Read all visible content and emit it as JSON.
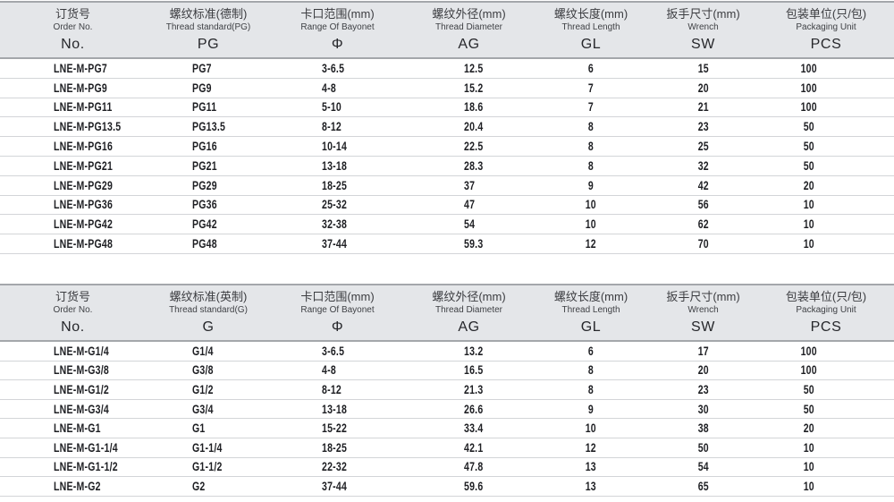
{
  "colors": {
    "header_background": "#e4e6e9",
    "header_border": "#a4a7ab",
    "row_divider": "#d3d5d8",
    "text_primary": "#1e1f23"
  },
  "tables": [
    {
      "id": "pg-metric-table",
      "columns": [
        {
          "zh": "订货号",
          "en": "Order No.",
          "code": "No."
        },
        {
          "zh": "螺纹标准(德制)",
          "en": "Thread standard(PG)",
          "code": "PG"
        },
        {
          "zh": "卡口范围(mm)",
          "en": "Range Of Bayonet",
          "code": "Φ"
        },
        {
          "zh": "螺纹外径(mm)",
          "en": "Thread Diameter",
          "code": "AG"
        },
        {
          "zh": "螺纹长度(mm)",
          "en": "Thread Length",
          "code": "GL"
        },
        {
          "zh": "扳手尺寸(mm)",
          "en": "Wrench",
          "code": "SW"
        },
        {
          "zh": "包装单位(只/包)",
          "en": "Packaging Unit",
          "code": "PCS"
        }
      ],
      "rows": [
        [
          "LNE-M-PG7",
          "PG7",
          "3-6.5",
          "12.5",
          "6",
          "15",
          "100"
        ],
        [
          "LNE-M-PG9",
          "PG9",
          "4-8",
          "15.2",
          "7",
          "20",
          "100"
        ],
        [
          "LNE-M-PG11",
          "PG11",
          "5-10",
          "18.6",
          "7",
          "21",
          "100"
        ],
        [
          "LNE-M-PG13.5",
          "PG13.5",
          "8-12",
          "20.4",
          "8",
          "23",
          "50"
        ],
        [
          "LNE-M-PG16",
          "PG16",
          "10-14",
          "22.5",
          "8",
          "25",
          "50"
        ],
        [
          "LNE-M-PG21",
          "PG21",
          "13-18",
          "28.3",
          "8",
          "32",
          "50"
        ],
        [
          "LNE-M-PG29",
          "PG29",
          "18-25",
          "37",
          "9",
          "42",
          "20"
        ],
        [
          "LNE-M-PG36",
          "PG36",
          "25-32",
          "47",
          "10",
          "56",
          "10"
        ],
        [
          "LNE-M-PG42",
          "PG42",
          "32-38",
          "54",
          "10",
          "62",
          "10"
        ],
        [
          "LNE-M-PG48",
          "PG48",
          "37-44",
          "59.3",
          "12",
          "70",
          "10"
        ]
      ]
    },
    {
      "id": "g-thread-table",
      "columns": [
        {
          "zh": "订货号",
          "en": "Order No.",
          "code": "No."
        },
        {
          "zh": "螺纹标准(英制)",
          "en": "Thread standard(G)",
          "code": "G"
        },
        {
          "zh": "卡口范围(mm)",
          "en": "Range Of Bayonet",
          "code": "Φ"
        },
        {
          "zh": "螺纹外径(mm)",
          "en": "Thread Diameter",
          "code": "AG"
        },
        {
          "zh": "螺纹长度(mm)",
          "en": "Thread Length",
          "code": "GL"
        },
        {
          "zh": "扳手尺寸(mm)",
          "en": "Wrench",
          "code": "SW"
        },
        {
          "zh": "包装单位(只/包)",
          "en": "Packaging Unit",
          "code": "PCS"
        }
      ],
      "rows": [
        [
          "LNE-M-G1/4",
          "G1/4",
          "3-6.5",
          "13.2",
          "6",
          "17",
          "100"
        ],
        [
          "LNE-M-G3/8",
          "G3/8",
          "4-8",
          "16.5",
          "8",
          "20",
          "100"
        ],
        [
          "LNE-M-G1/2",
          "G1/2",
          "8-12",
          "21.3",
          "8",
          "23",
          "50"
        ],
        [
          "LNE-M-G3/4",
          "G3/4",
          "13-18",
          "26.6",
          "9",
          "30",
          "50"
        ],
        [
          "LNE-M-G1",
          "G1",
          "15-22",
          "33.4",
          "10",
          "38",
          "20"
        ],
        [
          "LNE-M-G1-1/4",
          "G1-1/4",
          "18-25",
          "42.1",
          "12",
          "50",
          "10"
        ],
        [
          "LNE-M-G1-1/2",
          "G1-1/2",
          "22-32",
          "47.8",
          "13",
          "54",
          "10"
        ],
        [
          "LNE-M-G2",
          "G2",
          "37-44",
          "59.6",
          "13",
          "65",
          "10"
        ]
      ]
    }
  ]
}
